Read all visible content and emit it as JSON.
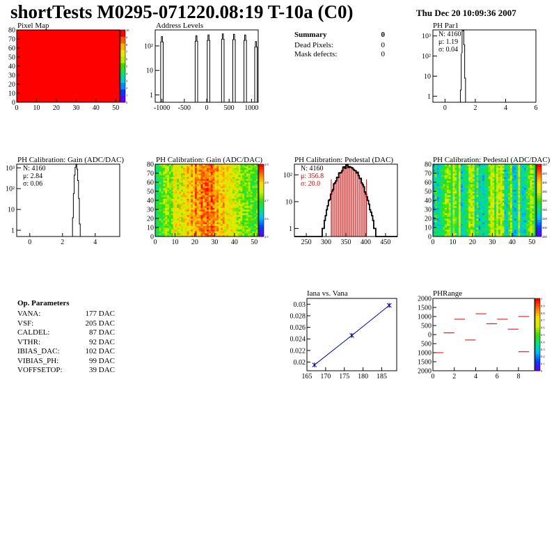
{
  "header": {
    "title": "shortTests M0295-071220.08:19 T-10a (C0)",
    "date": "Thu Dec 20 10:09:36 2007"
  },
  "summary": {
    "title": "Summary",
    "value": "0",
    "rows": [
      {
        "label": "Dead Pixels:",
        "value": "0"
      },
      {
        "label": "Mask defects:",
        "value": "0"
      }
    ]
  },
  "op_params": {
    "title": "Op. Parameters",
    "rows": [
      {
        "label": "VANA:",
        "value": "177 DAC"
      },
      {
        "label": "VSF:",
        "value": "205 DAC"
      },
      {
        "label": "CALDEL:",
        "value": "87 DAC"
      },
      {
        "label": "VTHR:",
        "value": "92 DAC"
      },
      {
        "label": "IBIAS_DAC:",
        "value": "102 DAC"
      },
      {
        "label": "VIBIAS_PH:",
        "value": "99 DAC"
      },
      {
        "label": "VOFFSETOP:",
        "value": "39 DAC"
      }
    ]
  },
  "panels": {
    "pixel_map": {
      "title": "Pixel Map"
    },
    "address_levels": {
      "title": "Address Levels"
    },
    "ph_par1": {
      "title": "PH Par1",
      "stats": [
        "N: 4160",
        "μ: 1.19",
        "σ: 0.04"
      ]
    },
    "gain_1d": {
      "title": "PH Calibration: Gain (ADC/DAC)",
      "stats": [
        "N: 4160",
        "μ: 2.84",
        "σ: 0.06"
      ]
    },
    "gain_2d": {
      "title": "PH Calibration: Gain (ADC/DAC)"
    },
    "pedestal_1d": {
      "title": "PH Calibration: Pedestal (DAC)",
      "stats": [
        "N: 4160",
        "μ: 356.8",
        "σ: 20.0"
      ]
    },
    "pedestal_2d": {
      "title": "PH Calibration: Pedestal (ADC/DAC)"
    },
    "iana": {
      "title": "Iana vs. Vana"
    },
    "phrange": {
      "title": "PHRange"
    }
  },
  "chart_data": [
    {
      "type": "heatmap",
      "name": "pixel_map",
      "xlim": [
        0,
        52
      ],
      "ylim": [
        0,
        80
      ],
      "x_ticks": [
        "0",
        "10",
        "20",
        "30",
        "40",
        "50"
      ],
      "y_ticks": [
        "0",
        "10",
        "20",
        "30",
        "40",
        "50",
        "60",
        "70",
        "80"
      ],
      "z_ticks": [
        "0",
        "1",
        "2",
        "3",
        "4",
        "5",
        "6",
        "7",
        "8",
        "9",
        "10"
      ],
      "fill_value": 10,
      "fill_color": "#ff0000"
    },
    {
      "type": "bar",
      "name": "address_levels",
      "log_y": true,
      "xlim": [
        -1150,
        1150
      ],
      "ylim": [
        0.5,
        450
      ],
      "x_ticks": [
        "-1000",
        "-500",
        "0",
        "500",
        "1000"
      ],
      "y_ticks": [
        "1",
        "10",
        "10²"
      ],
      "peaks": [
        {
          "x": -1000,
          "h": 240
        },
        {
          "x": -230,
          "h": 260
        },
        {
          "x": 40,
          "h": 280
        },
        {
          "x": 360,
          "h": 310
        },
        {
          "x": 610,
          "h": 300
        },
        {
          "x": 860,
          "h": 280
        },
        {
          "x": 1100,
          "h": 150
        }
      ]
    },
    {
      "type": "bar",
      "name": "ph_par1",
      "log_y": true,
      "xlim": [
        -0.8,
        6
      ],
      "ylim": [
        0.5,
        2000
      ],
      "x_ticks": [
        "0",
        "2",
        "4",
        "6"
      ],
      "y_ticks": [
        "1",
        "10",
        "10²",
        "10³"
      ],
      "mean": 1.19,
      "sigma": 0.04,
      "n": 4160
    },
    {
      "type": "bar",
      "name": "gain_1d",
      "log_y": true,
      "xlim": [
        -0.8,
        5.5
      ],
      "ylim": [
        0.5,
        1500
      ],
      "x_ticks": [
        "0",
        "2",
        "4"
      ],
      "y_ticks": [
        "1",
        "10",
        "10²",
        "10³"
      ],
      "mean": 2.84,
      "sigma": 0.06,
      "n": 4160
    },
    {
      "type": "heatmap",
      "name": "gain_2d",
      "xlim": [
        0,
        52
      ],
      "ylim": [
        0,
        80
      ],
      "x_ticks": [
        "0",
        "10",
        "20",
        "30",
        "40",
        "50"
      ],
      "y_ticks": [
        "0",
        "10",
        "20",
        "30",
        "40",
        "50",
        "60",
        "70",
        "80"
      ],
      "z_ticks": [
        "2.5",
        "2.6",
        "2.7",
        "2.8",
        "2.9"
      ],
      "zlim": [
        2.45,
        2.98
      ]
    },
    {
      "type": "bar",
      "name": "pedestal_1d",
      "log_y": true,
      "xlim": [
        220,
        480
      ],
      "ylim": [
        0.5,
        250
      ],
      "x_ticks": [
        "250",
        "300",
        "350",
        "400",
        "450"
      ],
      "y_ticks": [
        "1",
        "10",
        "10²"
      ],
      "mean": 356.8,
      "sigma": 20.0,
      "n": 4160,
      "fit_range": [
        313,
        402
      ],
      "fit_lines": [
        313,
        402
      ]
    },
    {
      "type": "heatmap",
      "name": "pedestal_2d",
      "xlim": [
        0,
        52
      ],
      "ylim": [
        0,
        80
      ],
      "x_ticks": [
        "0",
        "10",
        "20",
        "30",
        "40",
        "50"
      ],
      "y_ticks": [
        "0",
        "10",
        "20",
        "30",
        "40",
        "50",
        "60",
        "70",
        "80"
      ],
      "z_ticks": [
        "280",
        "300",
        "320",
        "340",
        "360",
        "380",
        "400",
        "420",
        "440"
      ],
      "zlim": [
        270,
        450
      ]
    },
    {
      "type": "line",
      "name": "iana",
      "xlim": [
        165,
        189
      ],
      "ylim": [
        0.0185,
        0.031
      ],
      "x_ticks": [
        "165",
        "170",
        "175",
        "180",
        "185"
      ],
      "y_ticks": [
        "0.02",
        "0.022",
        "0.024",
        "0.026",
        "0.028",
        "0.03"
      ],
      "x": [
        167,
        177,
        187
      ],
      "y": [
        0.0195,
        0.0246,
        0.0298
      ]
    },
    {
      "type": "scatter",
      "name": "phrange",
      "xlim": [
        0,
        9.5
      ],
      "ylim": [
        -2000,
        2000
      ],
      "x_ticks": [
        "0",
        "2",
        "4",
        "6",
        "8"
      ],
      "y_ticks": [
        "2000",
        "1500",
        "1000",
        "500",
        "0",
        "-500",
        "-1000",
        "-1500",
        "-2000"
      ],
      "z_ticks": [
        "0",
        "0.1",
        "0.2",
        "0.3",
        "0.4",
        "0.5",
        "0.6",
        "0.7",
        "0.8",
        "0.9",
        "1"
      ],
      "points": [
        [
          0.5,
          -1000
        ],
        [
          1.5,
          100
        ],
        [
          2.5,
          850
        ],
        [
          3.5,
          -300
        ],
        [
          4.5,
          1150
        ],
        [
          5.5,
          600
        ],
        [
          6.5,
          850
        ],
        [
          7.5,
          300
        ],
        [
          8.5,
          -950
        ],
        [
          8.5,
          1000
        ]
      ]
    }
  ]
}
